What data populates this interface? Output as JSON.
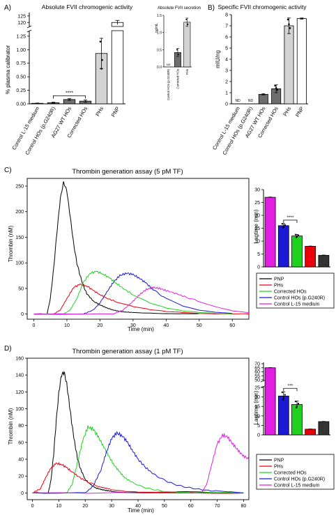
{
  "panel_labels": {
    "A": "A)",
    "B": "B)",
    "C": "C)",
    "D": "D)"
  },
  "colors": {
    "dark": "#000000",
    "pnp_grey_light": "#d3d3d3",
    "hos_grey": "#6e6e6e",
    "pnp": "#000000",
    "phs": "#e8000b",
    "corrected": "#1ed21e",
    "g240r": "#1a1ad6",
    "l15": "#e11ee1",
    "bar_magenta": "#e11ee1",
    "bar_blue": "#1a1ad6",
    "bar_green": "#1ed21e",
    "bar_red": "#e8000b",
    "bar_black": "#333333"
  },
  "chart_data": [
    {
      "id": "A",
      "type": "bar",
      "title": "Absolute FVII chromogenic activity",
      "ylabel": "% plasma calibrator",
      "categories": [
        "Control L-15 medium",
        "Control HOs (p.G240R)",
        "AG27 WT HOs",
        "Corrected HOs",
        "PHs",
        "PNP"
      ],
      "values": [
        0.01,
        0.02,
        0.08,
        0.05,
        0.93,
        120
      ],
      "errors": [
        0.005,
        0.01,
        0.015,
        0.02,
        0.28,
        2
      ],
      "y_ticks_lower": [
        "0.00",
        "0.25",
        "0.50",
        "0.75",
        "1.00",
        "1.25"
      ],
      "y_ticks_upper": [
        "120",
        "125"
      ],
      "axis_break": true,
      "ylim_lower": [
        0,
        1.3
      ],
      "ylim_upper": [
        118,
        126
      ],
      "significance": {
        "label": "****",
        "from": "Control HOs (p.G240R)",
        "to": "Corrected HOs"
      },
      "inset": {
        "title": "Absolute FVII secretion",
        "ylabel": "ng/mL",
        "categories": [
          "Control HOs (p.G240R)",
          "Corrected HOs",
          "PHs"
        ],
        "values": [
          0.0,
          0.42,
          1.3
        ],
        "errors": [
          0.0,
          0.12,
          0.12
        ],
        "y_ticks": [
          "0.0",
          "0.5",
          "1.0",
          "1.5"
        ],
        "ylim": [
          0,
          1.5
        ],
        "nd_label": "ND"
      }
    },
    {
      "id": "B",
      "type": "bar",
      "title": "Specific FVII chromogenic activity",
      "ylabel": "mIU/ng",
      "categories": [
        "Control L-15 medium",
        "Control HOs (p.G240R)",
        "AG27 WT HOs",
        "Corrected HOs",
        "PHs",
        "PNP"
      ],
      "values": [
        0,
        0,
        0.85,
        1.35,
        7.0,
        7.65
      ],
      "errors": [
        0,
        0,
        0.05,
        0.35,
        0.7,
        0.05
      ],
      "nd_label": "ND",
      "nd_categories": [
        "Control L-15 medium",
        "Control HOs (p.G240R)"
      ],
      "y_ticks": [
        "0",
        "1",
        "2",
        "3",
        "4",
        "5",
        "6",
        "7",
        "8"
      ],
      "ylim": [
        0,
        8
      ]
    },
    {
      "id": "C",
      "type": "line",
      "title": "Thrombin generation assay (5 pM TF)",
      "xlabel": "Time (min)",
      "ylabel": "Thrombin (nM)",
      "xlim": [
        -2,
        65
      ],
      "ylim": [
        -10,
        265
      ],
      "x_ticks": [
        "0",
        "10",
        "20",
        "30",
        "40",
        "50",
        "60"
      ],
      "y_ticks": [
        "0",
        "50",
        "100",
        "150",
        "200",
        "250"
      ],
      "series": [
        {
          "name": "PNP",
          "color_key": "pnp",
          "x": [
            0,
            4,
            5,
            6,
            7,
            8,
            9,
            10,
            11,
            12,
            13,
            14,
            15,
            16,
            18,
            20,
            22,
            24,
            26,
            28,
            30,
            35,
            40,
            45,
            50
          ],
          "y": [
            0,
            0,
            30,
            90,
            160,
            225,
            258,
            240,
            190,
            140,
            100,
            75,
            55,
            40,
            25,
            18,
            12,
            8,
            5,
            4,
            3,
            2,
            1,
            1,
            1
          ]
        },
        {
          "name": "PHs",
          "color_key": "phs",
          "x": [
            0,
            6,
            8,
            10,
            12,
            14,
            16,
            18,
            20,
            22,
            25,
            30,
            35,
            40,
            45,
            50,
            55,
            60,
            65
          ],
          "y": [
            0,
            0,
            8,
            30,
            52,
            58,
            55,
            46,
            38,
            31,
            24,
            15,
            9,
            5,
            3,
            1,
            0,
            0,
            0
          ]
        },
        {
          "name": "Corrected HOs",
          "color_key": "corrected",
          "x": [
            0,
            9,
            11,
            13,
            15,
            17,
            19,
            21,
            23,
            25,
            27,
            30,
            35,
            40,
            45,
            50,
            55,
            60
          ],
          "y": [
            0,
            0,
            8,
            30,
            62,
            80,
            83,
            78,
            70,
            60,
            50,
            38,
            22,
            12,
            6,
            3,
            1,
            0
          ]
        },
        {
          "name": "Control HOs (p.G240R)",
          "color_key": "g240r",
          "x": [
            0,
            15,
            18,
            20,
            22,
            24,
            26,
            28,
            30,
            32,
            34,
            36,
            40,
            45,
            50,
            55,
            60
          ],
          "y": [
            0,
            0,
            8,
            22,
            42,
            62,
            75,
            80,
            77,
            70,
            60,
            48,
            30,
            15,
            7,
            3,
            1
          ]
        },
        {
          "name": "Control L-15 medium",
          "color_key": "l15",
          "x": [
            0,
            24,
            27,
            30,
            32,
            34,
            36,
            38,
            40,
            43,
            46,
            50,
            55,
            60,
            65
          ],
          "y": [
            0,
            0,
            8,
            25,
            38,
            48,
            52,
            50,
            46,
            40,
            33,
            25,
            15,
            7,
            3
          ]
        }
      ]
    },
    {
      "id": "C-inset",
      "type": "bar",
      "ylabel": "Lagtime (min)",
      "categories": [
        "PNP",
        "PHs",
        "Corrected HOs",
        "Control HOs (p.G240R)",
        "Control L-15 medium"
      ],
      "order_drawn": [
        "Control L-15 medium",
        "Control HOs (p.G240R)",
        "Corrected HOs",
        "PHs",
        "PNP"
      ],
      "values_drawn": [
        27,
        16,
        12,
        8,
        4.5
      ],
      "errors_drawn": [
        0.1,
        0.8,
        0.6,
        0.1,
        0.1
      ],
      "y_ticks": [
        "0",
        "5",
        "10",
        "15",
        "20",
        "25",
        "30"
      ],
      "ylim": [
        0,
        30
      ],
      "significance": {
        "label": "****",
        "from": "Control HOs (p.G240R)",
        "to": "Corrected HOs"
      }
    },
    {
      "id": "D",
      "type": "line",
      "title": "Thrombin generation assay (1 pM TF)",
      "xlabel": "Time (min)",
      "ylabel": "Thrombin (nM)",
      "xlim": [
        -2,
        82
      ],
      "ylim": [
        -8,
        160
      ],
      "x_ticks": [
        "0",
        "10",
        "20",
        "30",
        "40",
        "50",
        "60",
        "70",
        "80"
      ],
      "y_ticks": [
        "0",
        "20",
        "40",
        "60",
        "80",
        "100",
        "120",
        "140",
        "160"
      ],
      "series": [
        {
          "name": "PNP",
          "color_key": "pnp",
          "x": [
            0,
            6,
            7,
            8,
            9,
            10,
            11,
            12,
            13,
            14,
            15,
            16,
            17,
            18,
            20,
            22,
            24,
            26,
            28,
            30,
            35,
            40,
            50,
            60,
            70,
            80
          ],
          "y": [
            0,
            0,
            15,
            45,
            85,
            120,
            140,
            143,
            130,
            105,
            80,
            60,
            42,
            30,
            16,
            10,
            6,
            4,
            3,
            2,
            1,
            1,
            1,
            1,
            0,
            0
          ]
        },
        {
          "name": "PHs",
          "color_key": "phs",
          "x": [
            0,
            3,
            5,
            7,
            9,
            11,
            13,
            15,
            18,
            21,
            25,
            30,
            35,
            40,
            50,
            60,
            70,
            80
          ],
          "y": [
            0,
            5,
            18,
            30,
            35,
            34,
            30,
            25,
            18,
            13,
            8,
            4,
            2,
            1,
            0,
            0,
            0,
            0
          ]
        },
        {
          "name": "Corrected HOs",
          "color_key": "corrected",
          "x": [
            0,
            13,
            15,
            17,
            19,
            21,
            23,
            25,
            27,
            29,
            31,
            33,
            35,
            38,
            42,
            46,
            50,
            55,
            60,
            70,
            80
          ],
          "y": [
            0,
            0,
            10,
            35,
            62,
            78,
            76,
            66,
            55,
            43,
            33,
            25,
            18,
            12,
            7,
            4,
            2,
            1,
            0,
            0,
            0
          ]
        },
        {
          "name": "Control HOs (p.G240R)",
          "color_key": "g240r",
          "x": [
            0,
            20,
            23,
            26,
            28,
            30,
            32,
            34,
            36,
            38,
            40,
            43,
            46,
            50,
            54,
            58,
            62,
            66,
            70,
            75,
            80
          ],
          "y": [
            0,
            0,
            8,
            28,
            48,
            65,
            71,
            68,
            60,
            50,
            40,
            30,
            22,
            15,
            10,
            7,
            5,
            3,
            2,
            1,
            0
          ]
        },
        {
          "name": "Control L-15 medium",
          "color_key": "l15",
          "x": [
            0,
            64,
            66,
            68,
            70,
            72,
            74,
            76,
            78,
            80,
            82
          ],
          "y": [
            0,
            0,
            10,
            35,
            58,
            69,
            66,
            58,
            50,
            44,
            40
          ]
        }
      ]
    },
    {
      "id": "D-inset",
      "type": "bar",
      "ylabel": "Lagtime (min)",
      "categories": [
        "PNP",
        "PHs",
        "Corrected HOs",
        "Control HOs (p.G240R)",
        "Control L-15 medium"
      ],
      "order_drawn": [
        "Control L-15 medium",
        "Control HOs (p.G240R)",
        "Corrected HOs",
        "PHs",
        "PNP"
      ],
      "values_drawn": [
        65,
        20.5,
        16,
        3,
        7
      ],
      "errors_drawn": [
        0.2,
        2.2,
        1.8,
        0.1,
        0.1
      ],
      "y_ticks_lower": [
        "0",
        "5",
        "10",
        "15",
        "20",
        "25"
      ],
      "y_ticks_upper": [
        "50",
        "55",
        "60",
        "65",
        "70"
      ],
      "axis_break": true,
      "significance": {
        "label": "***",
        "from": "Control HOs (p.G240R)",
        "to": "Corrected HOs"
      }
    }
  ]
}
